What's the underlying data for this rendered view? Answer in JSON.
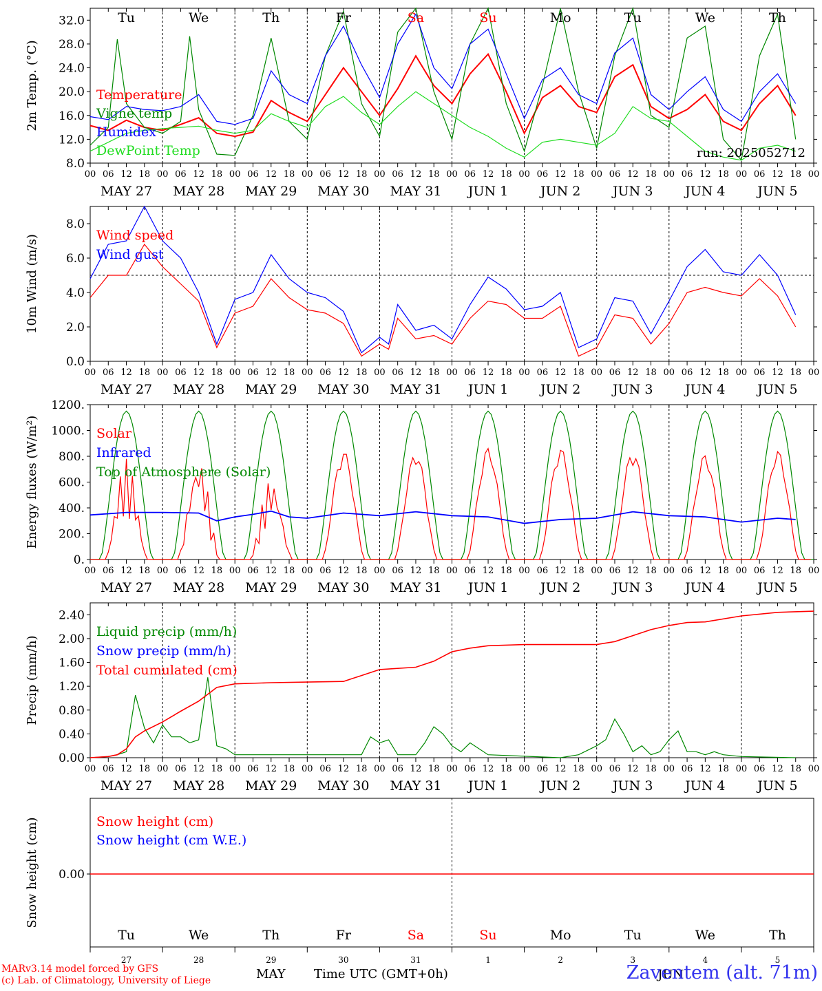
{
  "run_label": "run: 2025052712",
  "station": "Zaventem (alt. 71m)",
  "model_line1": "MARv3.14 model forced by GFS",
  "model_line2": "(c) Lab. of Climatology, University of Liege",
  "x_title": "Time UTC (GMT+0h)",
  "month_label": "MAY",
  "month_label2": "JUN",
  "hour_ticks": [
    "00",
    "06",
    "12",
    "18"
  ],
  "date_labels": [
    "MAY 27",
    "MAY 28",
    "MAY 29",
    "MAY 30",
    "MAY 31",
    "JUN  1",
    "JUN  2",
    "JUN  3",
    "JUN  4",
    "JUN  5"
  ],
  "weekdays": [
    "Tu",
    "We",
    "Th",
    "Fr",
    "Sa",
    "Su",
    "Mo",
    "Tu",
    "We",
    "Th"
  ],
  "weekend_flags": [
    false,
    false,
    false,
    false,
    true,
    true,
    false,
    false,
    false,
    false
  ],
  "day_numbers": [
    "27",
    "28",
    "29",
    "30",
    "31",
    "1",
    "2",
    "3",
    "4",
    "5"
  ],
  "colors": {
    "red": "#ff0000",
    "blue": "#0000ff",
    "green": "#008800",
    "lightgreen": "#22dd22",
    "weekend": "#ff0000"
  },
  "chart_data": [
    {
      "type": "line",
      "ylabel": "2m Temp. (°C)",
      "ylim": [
        8,
        34
      ],
      "yticks": [
        "8.0",
        "12.0",
        "16.0",
        "20.0",
        "24.0",
        "28.0",
        "32.0"
      ],
      "x_unit": "hours since MAY 27 00 UTC",
      "series": [
        {
          "name": "Temperature",
          "color": "#ff0000",
          "x": [
            0,
            6,
            12,
            18,
            24,
            30,
            36,
            42,
            48,
            54,
            60,
            66,
            72,
            78,
            84,
            90,
            96,
            102,
            108,
            114,
            120,
            126,
            132,
            138,
            144,
            150,
            156,
            162,
            168,
            174,
            180,
            186,
            192,
            198,
            204,
            210,
            216,
            222,
            228,
            234
          ],
          "values": [
            14.3,
            13.5,
            15.2,
            14.0,
            13.5,
            14.5,
            15.6,
            13.0,
            12.5,
            13.2,
            18.5,
            16.5,
            15.0,
            19.5,
            24.0,
            20.0,
            16.0,
            20.5,
            26.0,
            21.0,
            18.0,
            23.0,
            26.3,
            20.0,
            13.0,
            19.0,
            21.0,
            17.5,
            16.5,
            22.5,
            24.5,
            17.5,
            15.5,
            17.0,
            19.5,
            15.0,
            13.5,
            18.0,
            21.0,
            16.0
          ]
        },
        {
          "name": "Vigne temp",
          "color": "#008800",
          "x": [
            0,
            6,
            9,
            12,
            18,
            24,
            30,
            33,
            36,
            42,
            48,
            54,
            60,
            66,
            72,
            78,
            84,
            90,
            96,
            102,
            108,
            114,
            120,
            126,
            132,
            138,
            144,
            150,
            156,
            162,
            168,
            174,
            180,
            186,
            192,
            198,
            204,
            210,
            216,
            222,
            228,
            234
          ],
          "values": [
            11,
            14,
            28.8,
            18,
            14,
            13,
            15,
            29.3,
            17,
            9.5,
            9.3,
            16,
            29,
            15,
            12,
            26,
            33.5,
            18,
            12.5,
            30,
            34,
            20,
            12,
            28,
            34,
            18,
            10,
            21,
            34,
            20,
            10.5,
            26,
            34,
            16,
            14,
            29,
            31,
            12,
            8.5,
            26,
            33,
            12
          ]
        },
        {
          "name": "Humidex",
          "color": "#0000ff",
          "x": [
            0,
            6,
            12,
            18,
            24,
            30,
            36,
            42,
            48,
            54,
            60,
            66,
            72,
            78,
            84,
            90,
            96,
            102,
            108,
            114,
            120,
            126,
            132,
            138,
            144,
            150,
            156,
            162,
            168,
            174,
            180,
            186,
            192,
            198,
            204,
            210,
            216,
            222,
            228,
            234
          ],
          "values": [
            15.8,
            15.3,
            17.5,
            17.0,
            16.8,
            17.5,
            19.5,
            15.0,
            14.5,
            15.5,
            23.5,
            19.5,
            18.0,
            26.0,
            31.0,
            24.5,
            19.0,
            28.0,
            33.0,
            24.0,
            20.5,
            28.0,
            30.5,
            23.0,
            15.5,
            22.0,
            24.0,
            19.5,
            18.0,
            26.5,
            29.0,
            19.5,
            17.0,
            20.0,
            22.5,
            17.0,
            15.0,
            20.0,
            23.0,
            18.0
          ]
        },
        {
          "name": "DewPoint Temp",
          "color": "#22dd22",
          "x": [
            0,
            6,
            12,
            18,
            24,
            30,
            36,
            42,
            48,
            54,
            60,
            66,
            72,
            78,
            84,
            90,
            96,
            102,
            108,
            114,
            120,
            126,
            132,
            138,
            144,
            150,
            156,
            162,
            168,
            174,
            180,
            186,
            192,
            198,
            204,
            210,
            216,
            222,
            228,
            234
          ],
          "values": [
            10.0,
            11.5,
            13.0,
            13.5,
            13.8,
            14.0,
            14.2,
            13.5,
            13.0,
            13.5,
            16.3,
            15.0,
            14.0,
            17.5,
            19.2,
            16.5,
            14.5,
            17.5,
            20.0,
            18.0,
            16.0,
            14.0,
            12.5,
            10.5,
            9.0,
            11.5,
            12.0,
            11.5,
            11.0,
            13.0,
            17.5,
            15.5,
            15.0,
            12.5,
            10.0,
            9.0,
            8.5,
            10.5,
            11.0,
            10.0
          ]
        }
      ]
    },
    {
      "type": "line",
      "ylabel": "10m Wind (m/s)",
      "ylim": [
        0,
        9
      ],
      "yticks": [
        "0.0",
        "2.0",
        "4.0",
        "6.0",
        "8.0"
      ],
      "reference_line": 5.0,
      "series": [
        {
          "name": "Wind speed",
          "color": "#ff0000",
          "x": [
            0,
            6,
            12,
            18,
            24,
            30,
            36,
            42,
            48,
            54,
            60,
            66,
            72,
            78,
            84,
            90,
            96,
            99,
            102,
            108,
            114,
            120,
            126,
            132,
            138,
            144,
            150,
            156,
            162,
            168,
            174,
            180,
            186,
            192,
            198,
            204,
            210,
            216,
            222,
            228,
            234
          ],
          "values": [
            3.7,
            5.0,
            5.0,
            6.8,
            5.5,
            4.5,
            3.5,
            0.8,
            2.8,
            3.2,
            4.8,
            3.7,
            3.0,
            2.8,
            2.2,
            0.3,
            1.0,
            0.7,
            2.5,
            1.3,
            1.5,
            1.0,
            2.5,
            3.5,
            3.3,
            2.5,
            2.5,
            3.2,
            0.3,
            0.8,
            2.7,
            2.5,
            1.0,
            2.2,
            4.0,
            4.3,
            4.0,
            3.8,
            4.8,
            3.8,
            2.0
          ]
        },
        {
          "name": "Wind gust",
          "color": "#0000ff",
          "x": [
            0,
            6,
            12,
            18,
            24,
            30,
            36,
            42,
            48,
            54,
            60,
            66,
            72,
            78,
            84,
            90,
            96,
            99,
            102,
            108,
            114,
            120,
            126,
            132,
            138,
            144,
            150,
            156,
            162,
            168,
            174,
            180,
            186,
            192,
            198,
            204,
            210,
            216,
            222,
            228,
            234
          ],
          "values": [
            4.8,
            6.8,
            7.0,
            9.0,
            7.0,
            6.0,
            4.0,
            1.0,
            3.6,
            4.0,
            6.2,
            4.8,
            4.0,
            3.7,
            2.9,
            0.5,
            1.4,
            1.0,
            3.3,
            1.8,
            2.1,
            1.3,
            3.3,
            4.9,
            4.2,
            3.0,
            3.2,
            4.0,
            0.8,
            1.3,
            3.7,
            3.5,
            1.6,
            3.5,
            5.5,
            6.5,
            5.2,
            5.0,
            6.2,
            5.0,
            2.7
          ]
        }
      ]
    },
    {
      "type": "line",
      "ylabel": "Energy fluxes (W/m²)",
      "ylim": [
        0,
        1200
      ],
      "yticks": [
        "0.",
        "200.",
        "400.",
        "600.",
        "800.",
        "1000.",
        "1200."
      ],
      "series": [
        {
          "name": "Solar",
          "color": "#ff0000",
          "peaks": [
            780,
            790,
            630,
            850,
            840,
            870,
            870,
            850,
            820,
            850
          ]
        },
        {
          "name": "Infrared",
          "color": "#0000ff",
          "x": [
            0,
            12,
            24,
            36,
            42,
            48,
            54,
            60,
            66,
            72,
            84,
            96,
            108,
            120,
            132,
            144,
            156,
            168,
            180,
            192,
            204,
            216,
            228,
            234
          ],
          "values": [
            345,
            365,
            365,
            360,
            300,
            330,
            350,
            375,
            330,
            320,
            360,
            340,
            370,
            340,
            330,
            280,
            310,
            320,
            370,
            340,
            330,
            290,
            320,
            310
          ]
        },
        {
          "name": "Top of Atmosphere (Solar)",
          "color": "#008800",
          "peak": 1150
        }
      ]
    },
    {
      "type": "line",
      "ylabel": "Precip (mm/h)",
      "ylim": [
        0,
        2.6
      ],
      "yticks": [
        "0.00",
        "0.40",
        "0.80",
        "1.20",
        "1.60",
        "2.00",
        "2.40"
      ],
      "series": [
        {
          "name": "Liquid precip (mm/h)",
          "color": "#008800",
          "x": [
            0,
            6,
            9,
            12,
            15,
            18,
            21,
            24,
            27,
            30,
            33,
            36,
            39,
            42,
            45,
            48,
            90,
            93,
            96,
            99,
            102,
            108,
            111,
            114,
            117,
            120,
            123,
            126,
            132,
            156,
            162,
            168,
            171,
            174,
            177,
            180,
            183,
            186,
            189,
            192,
            195,
            198,
            201,
            204,
            207,
            210,
            216,
            234
          ],
          "values": [
            0,
            0.02,
            0.05,
            0.1,
            1.05,
            0.5,
            0.25,
            0.55,
            0.35,
            0.35,
            0.25,
            0.3,
            1.35,
            0.2,
            0.15,
            0.05,
            0.05,
            0.35,
            0.25,
            0.3,
            0.05,
            0.05,
            0.25,
            0.52,
            0.4,
            0.2,
            0.1,
            0.25,
            0.05,
            0,
            0.05,
            0.2,
            0.3,
            0.65,
            0.4,
            0.1,
            0.2,
            0.05,
            0.1,
            0.3,
            0.45,
            0.1,
            0.1,
            0.05,
            0.1,
            0.05,
            0.02,
            0
          ]
        },
        {
          "name": "Snow precip (mm/h)",
          "color": "#0000ff",
          "values": []
        },
        {
          "name": "Total cumulated (cm)",
          "color": "#ff0000",
          "x": [
            0,
            6,
            9,
            12,
            15,
            18,
            24,
            30,
            36,
            42,
            48,
            60,
            72,
            84,
            90,
            96,
            108,
            114,
            120,
            126,
            132,
            144,
            156,
            168,
            174,
            180,
            186,
            192,
            198,
            204,
            216,
            228,
            240
          ],
          "values": [
            0,
            0.02,
            0.05,
            0.15,
            0.35,
            0.45,
            0.6,
            0.78,
            0.95,
            1.18,
            1.24,
            1.26,
            1.27,
            1.28,
            1.38,
            1.48,
            1.52,
            1.62,
            1.78,
            1.84,
            1.88,
            1.9,
            1.9,
            1.9,
            1.95,
            2.05,
            2.15,
            2.22,
            2.27,
            2.28,
            2.38,
            2.44,
            2.46
          ]
        }
      ]
    },
    {
      "type": "line",
      "ylabel": "Snow height (cm)",
      "ytick": "0.00",
      "series": [
        {
          "name": "Snow height (cm)",
          "color": "#ff0000",
          "values": [
            0
          ]
        },
        {
          "name": "Snow height (cm W.E.)",
          "color": "#0000ff",
          "values": [
            0
          ]
        }
      ]
    }
  ]
}
